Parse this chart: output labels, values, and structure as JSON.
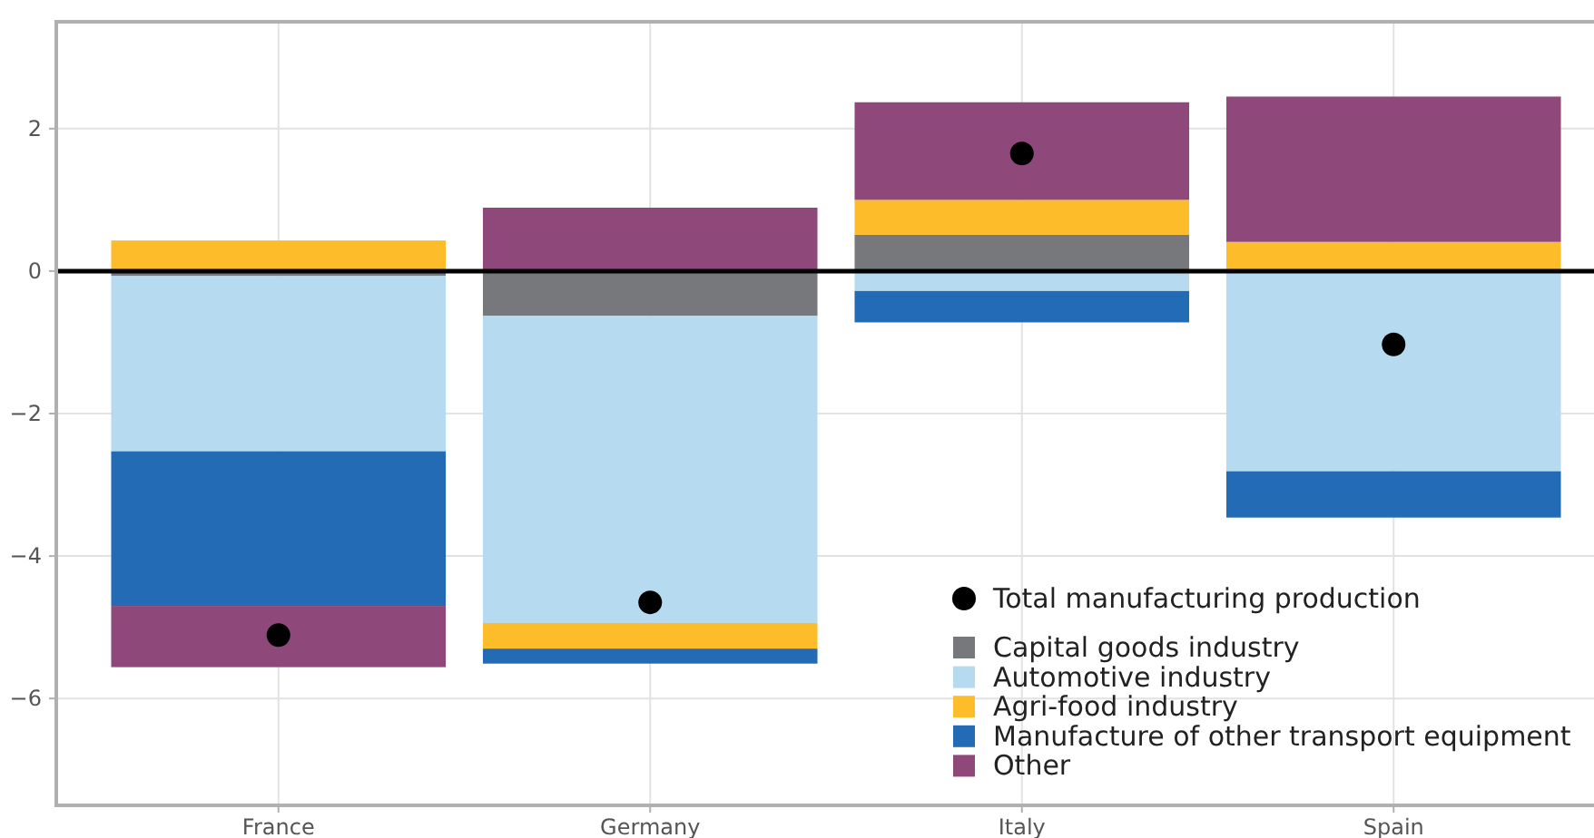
{
  "chart_data": {
    "type": "bar",
    "stacked": true,
    "categories": [
      "France",
      "Germany",
      "Italy",
      "Spain"
    ],
    "ylim": [
      -7.5,
      3.5
    ],
    "yticks": [
      {
        "value": -6,
        "label": "−6"
      },
      {
        "value": -4,
        "label": "−4"
      },
      {
        "value": -2,
        "label": "−2"
      },
      0,
      2
    ],
    "grid": true,
    "legend": "bottom right",
    "ref_lines": [
      {
        "axis": "y",
        "value": 0,
        "color": "#000000"
      }
    ],
    "series": [
      {
        "name": "Capital goods industry",
        "color": "#76787b",
        "values": [
          -0.07,
          -0.63,
          0.51,
          0
        ]
      },
      {
        "name": "Automotive industry",
        "color": "#b6daf0",
        "values": [
          -2.46,
          -4.31,
          -0.28,
          -2.81
        ]
      },
      {
        "name": "Agri-food industry",
        "color": "#fdbc2a",
        "values": [
          0.43,
          -0.36,
          0.49,
          0.41
        ]
      },
      {
        "name": "Manufacture of other transport equipment",
        "color": "#246bb5",
        "values": [
          -2.17,
          -0.21,
          -0.44,
          -0.65
        ]
      },
      {
        "name": "Other",
        "color": "#8e4879",
        "values": [
          -0.86,
          0.89,
          1.37,
          2.04
        ]
      },
      {
        "name": "Total manufacturing production",
        "type": "scatter",
        "marker": "circle",
        "color": "#000000",
        "values": [
          -5.11,
          -4.65,
          1.65,
          -1.03
        ]
      }
    ]
  }
}
